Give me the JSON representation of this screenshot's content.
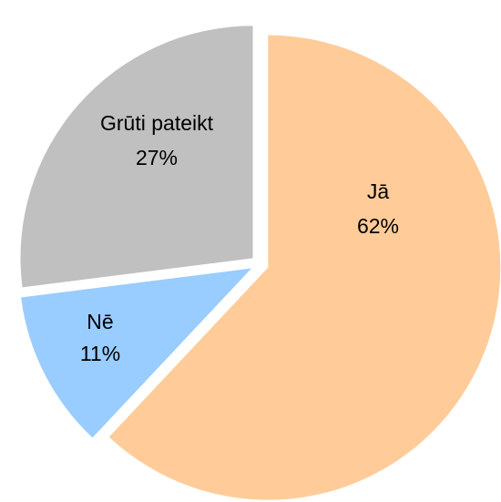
{
  "chart_data": {
    "type": "pie",
    "categories": [
      "Jā",
      "Nē",
      "Grūti pateikt"
    ],
    "values": [
      62,
      11,
      27
    ],
    "value_labels": [
      "62%",
      "11%",
      "27%"
    ],
    "colors": [
      "#ffcc99",
      "#99ccff",
      "#c0c0c0"
    ]
  }
}
